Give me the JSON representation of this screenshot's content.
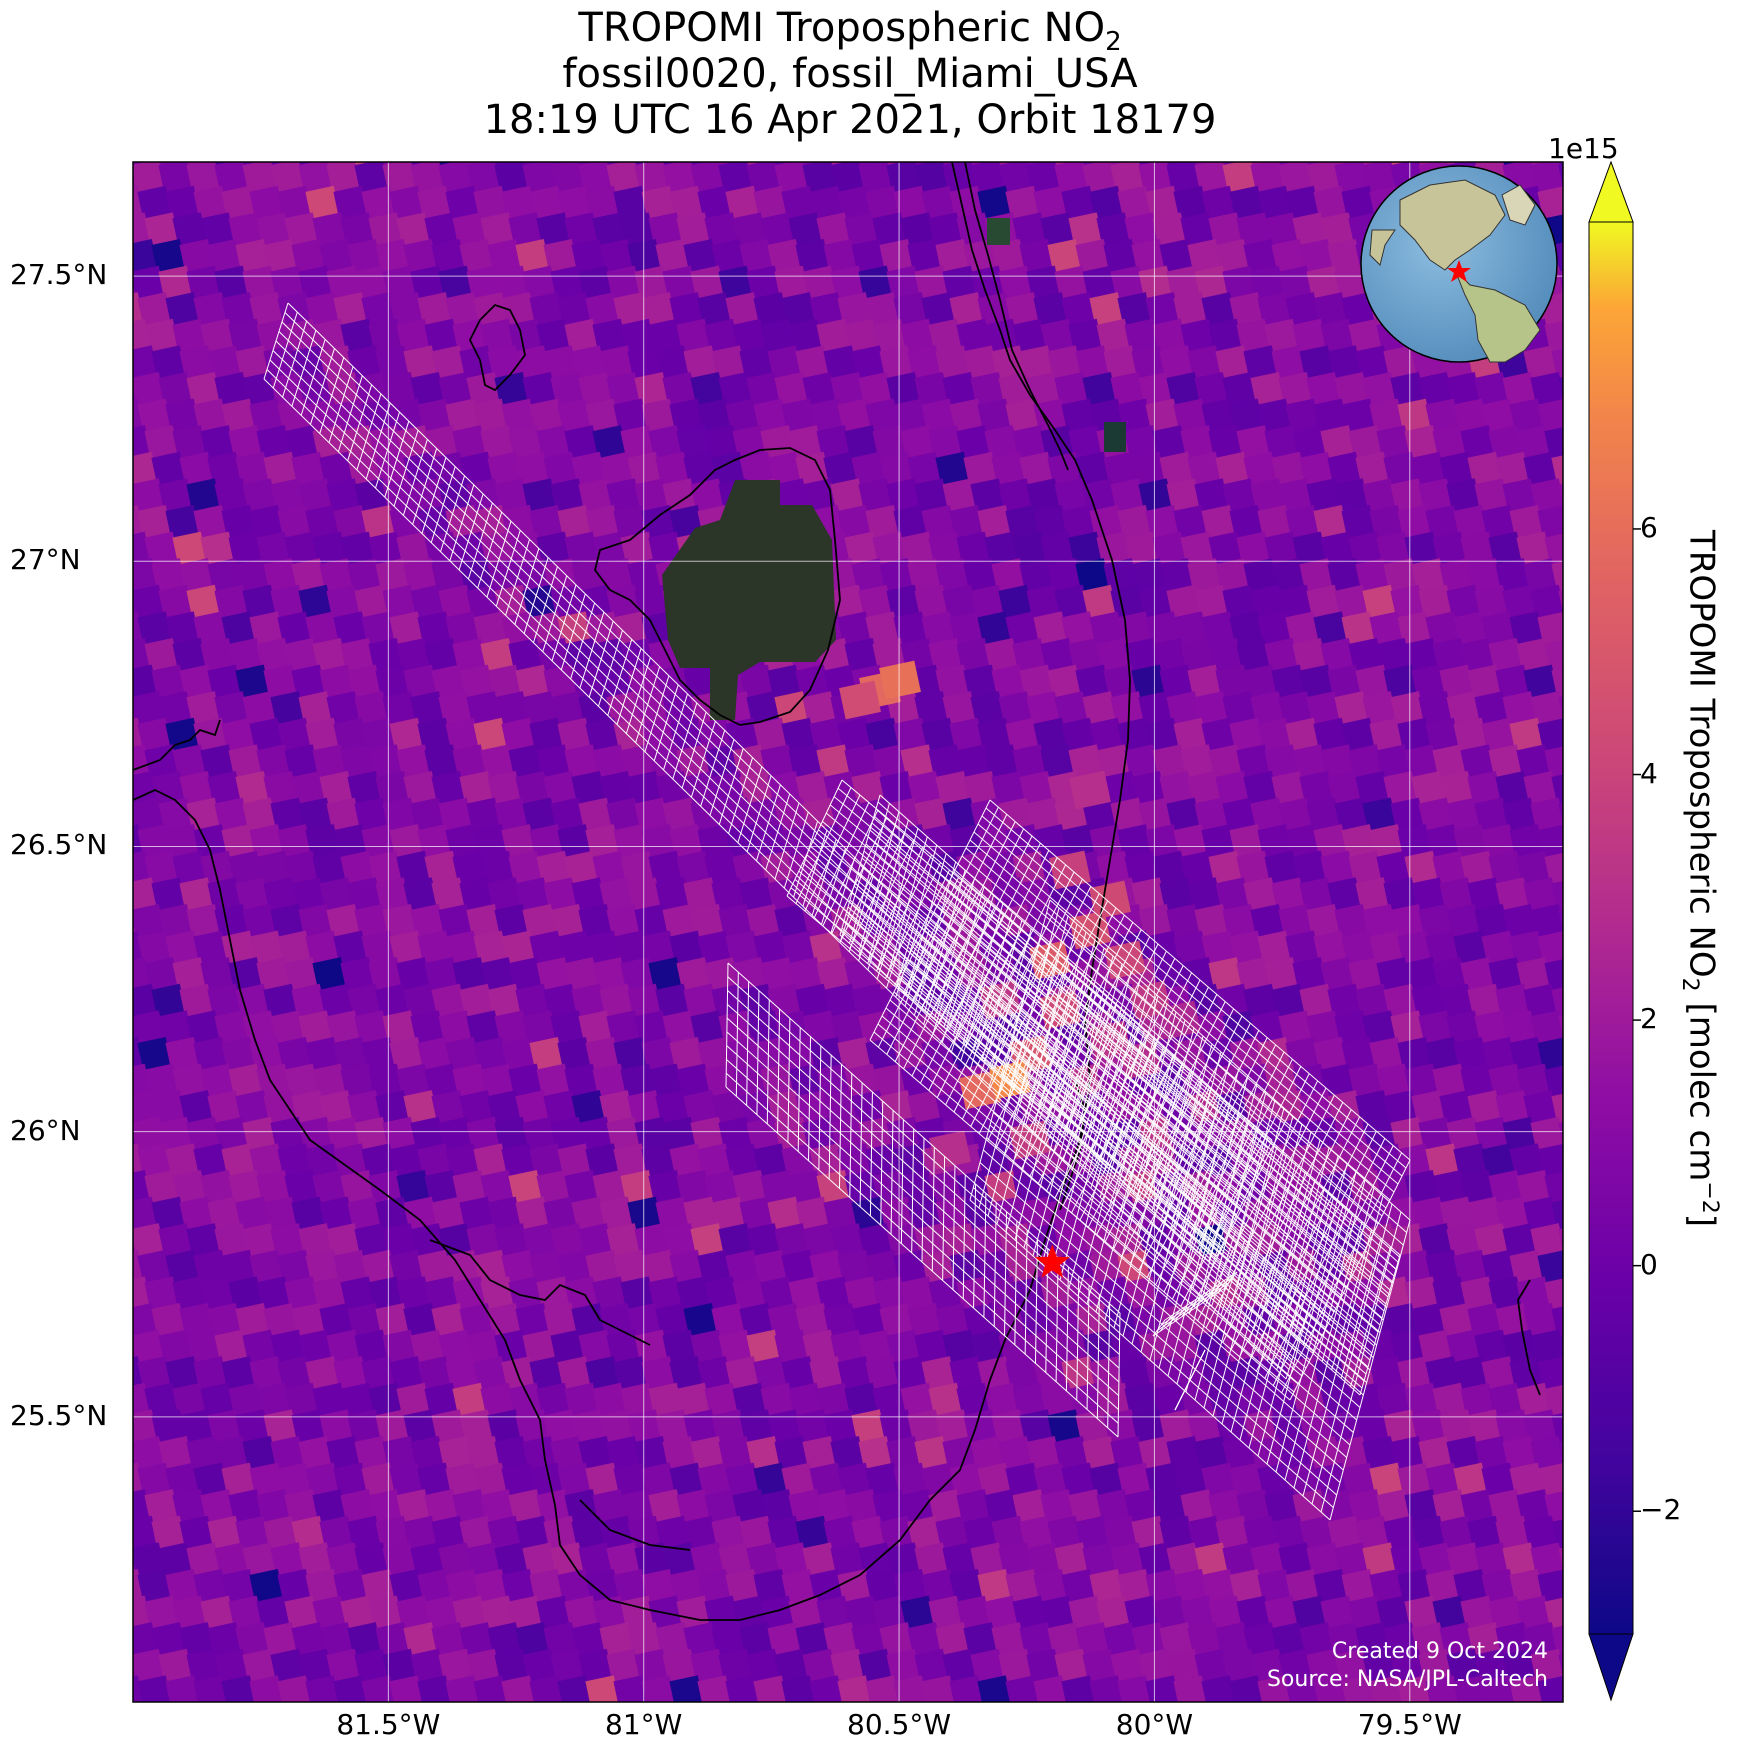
{
  "title": {
    "line1_prefix": "TROPOMI Tropospheric NO",
    "line1_sub": "2",
    "line2": "fossil0020, fossil_Miami_USA",
    "line3": "18:19 UTC 16 Apr 2021, Orbit 18179"
  },
  "map": {
    "lon_range": [
      -82.0,
      -79.2
    ],
    "lat_range": [
      25.0,
      27.7
    ],
    "lat_ticks": [
      {
        "value": 27.5,
        "label": "27.5°N"
      },
      {
        "value": 27.0,
        "label": "27°N"
      },
      {
        "value": 26.5,
        "label": "26.5°N"
      },
      {
        "value": 26.0,
        "label": "26°N"
      },
      {
        "value": 25.5,
        "label": "25.5°N"
      }
    ],
    "lon_ticks": [
      {
        "value": -81.5,
        "label": "81.5°W"
      },
      {
        "value": -81.0,
        "label": "81°W"
      },
      {
        "value": -80.5,
        "label": "80.5°W"
      },
      {
        "value": -80.0,
        "label": "80°W"
      },
      {
        "value": -79.5,
        "label": "79.5°W"
      }
    ],
    "gridlines": true,
    "site_marker": {
      "lon": -80.2,
      "lat": 25.77,
      "color": "#ff0000"
    },
    "lake_fill_color": "#2b3528",
    "inset_globe": true
  },
  "colorbar": {
    "exponent_label": "1e15",
    "min": -3.0,
    "max": 8.5,
    "ticks": [
      {
        "value": -2,
        "label": "−2"
      },
      {
        "value": 0,
        "label": "0"
      },
      {
        "value": 2,
        "label": "2"
      },
      {
        "value": 4,
        "label": "4"
      },
      {
        "value": 6,
        "label": "6"
      }
    ],
    "label_prefix": "TROPOMI Tropospheric NO",
    "label_sub": "2",
    "label_mid": " [molec cm",
    "label_sup": "−2",
    "label_suffix": "]",
    "colormap": "plasma"
  },
  "credits": {
    "created": "Created 9 Oct 2024",
    "source": "Source: NASA/JPL-Caltech"
  },
  "colors": {
    "grid": "#ffffff",
    "coastline": "#000000",
    "footprint_grid": "#ffffff",
    "marker": "#ff0000",
    "ocean_inset": "#6fa7cf",
    "land_inset": "#c8c49a"
  }
}
